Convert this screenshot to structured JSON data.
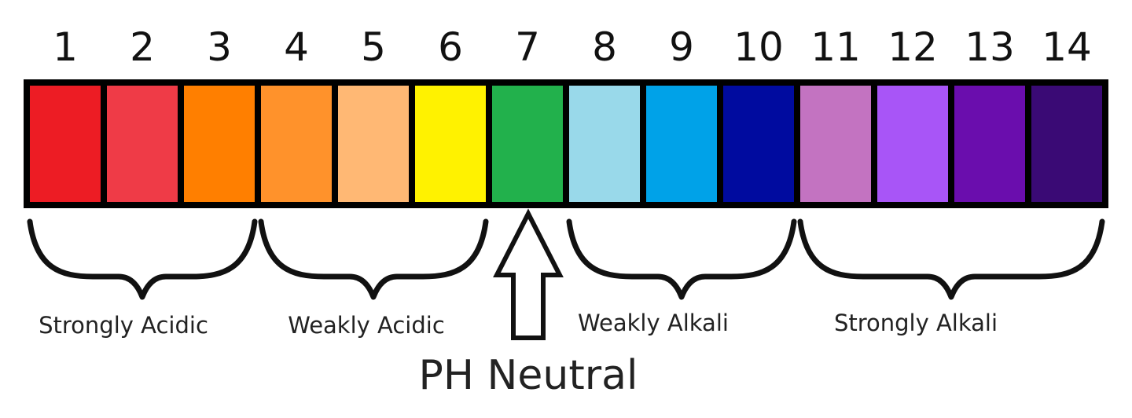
{
  "scale": {
    "numbers": [
      "1",
      "2",
      "3",
      "4",
      "5",
      "6",
      "7",
      "8",
      "9",
      "10",
      "11",
      "12",
      "13",
      "14"
    ],
    "colors": [
      "#ed1c24",
      "#ef3b47",
      "#ff7f00",
      "#ff922b",
      "#ffb874",
      "#fff200",
      "#22b14c",
      "#99d9ea",
      "#00a2e8",
      "#000b9f",
      "#c373c1",
      "#a855f7",
      "#6a0dad",
      "#3a0a75"
    ]
  },
  "groups": [
    {
      "label": "Strongly Acidic",
      "from": 1,
      "to": 3
    },
    {
      "label": "Weakly Acidic",
      "from": 4,
      "to": 6
    },
    {
      "label": "Weakly Alkali",
      "from": 8,
      "to": 10
    },
    {
      "label": "Strongly Alkali",
      "from": 11,
      "to": 14
    }
  ],
  "neutral": {
    "label": "PH Neutral",
    "points_to": 7
  }
}
